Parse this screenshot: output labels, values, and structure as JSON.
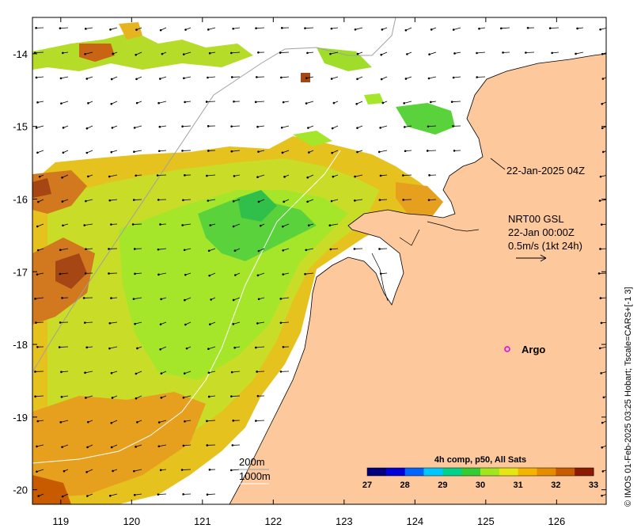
{
  "chart_data": {
    "type": "heatmap",
    "x_ticks": [
      "119",
      "120",
      "121",
      "122",
      "123",
      "124",
      "125",
      "126"
    ],
    "y_ticks": [
      "-14",
      "-15",
      "-16",
      "-17",
      "-18",
      "-19",
      "-20"
    ],
    "x_tick_values": [
      119,
      120,
      121,
      122,
      123,
      124,
      125,
      126
    ],
    "y_tick_values": [
      -14,
      -15,
      -16,
      -17,
      -18,
      -19,
      -20
    ],
    "xlim": [
      118.6,
      126.7
    ],
    "ylim": [
      -20.2,
      -13.5
    ],
    "land_color": "#fdc89b",
    "colorbar": {
      "title": "4h comp, p50, All Sats",
      "ticks": [
        "27",
        "28",
        "29",
        "30",
        "31",
        "32",
        "33"
      ],
      "range": [
        27,
        33
      ],
      "colors": [
        "#00007f",
        "#0000d8",
        "#0066ff",
        "#00c8ff",
        "#00d28c",
        "#32cd32",
        "#a0e61e",
        "#e6e614",
        "#f5b400",
        "#e68c00",
        "#c85a00",
        "#8b1a00"
      ]
    }
  },
  "annotations": {
    "timestamp": "22-Jan-2025 04Z",
    "current_source": "NRT00 GSL",
    "current_time": "22-Jan 00:00Z",
    "current_scale": "0.5m/s (1kt 24h)",
    "argo_label": "Argo",
    "contour_200": "200m",
    "contour_1000": "1000m"
  },
  "credit": "© IMOS 01-Feb-2025 03:25 Hobart; Tscale=CARS+[-1 3]"
}
